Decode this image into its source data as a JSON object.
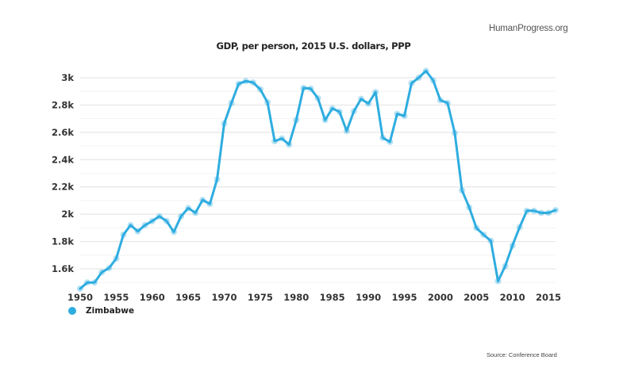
{
  "header": {
    "brand": "HumanProgress.org"
  },
  "footer": {
    "source": "Source: Conference Board"
  },
  "colors": {
    "series": "#2eade0",
    "grid_major": "#e6e6e6",
    "grid_minor": "#f3f3f3"
  },
  "chart_data": {
    "type": "line",
    "title": "GDP, per person, 2015 U.S. dollars, PPP",
    "xlabel": "",
    "ylabel": "",
    "xlim": [
      1950,
      2016
    ],
    "ylim": [
      1450,
      3050
    ],
    "grid": true,
    "legend_position": "bottom-left",
    "y_ticks": [
      {
        "value": 3000,
        "label": "3k"
      },
      {
        "value": 2800,
        "label": "2.8k"
      },
      {
        "value": 2600,
        "label": "2.6k"
      },
      {
        "value": 2400,
        "label": "2.4k"
      },
      {
        "value": 2200,
        "label": "2.2k"
      },
      {
        "value": 2000,
        "label": "2k"
      },
      {
        "value": 1800,
        "label": "1.8k"
      },
      {
        "value": 1600,
        "label": "1.6k"
      }
    ],
    "y_minor_ticks": [
      2900,
      2700,
      2500,
      2300,
      2100,
      1900,
      1700,
      1500
    ],
    "x_ticks": [
      1950,
      1955,
      1960,
      1965,
      1970,
      1975,
      1980,
      1985,
      1990,
      1995,
      2000,
      2005,
      2010,
      2015
    ],
    "series": [
      {
        "name": "Zimbabwe",
        "x": [
          1950,
          1951,
          1952,
          1953,
          1954,
          1955,
          1956,
          1957,
          1958,
          1959,
          1960,
          1961,
          1962,
          1963,
          1964,
          1965,
          1966,
          1967,
          1968,
          1969,
          1970,
          1971,
          1972,
          1973,
          1974,
          1975,
          1976,
          1977,
          1978,
          1979,
          1980,
          1981,
          1982,
          1983,
          1984,
          1985,
          1986,
          1987,
          1988,
          1989,
          1990,
          1991,
          1992,
          1993,
          1994,
          1995,
          1996,
          1997,
          1998,
          1999,
          2000,
          2001,
          2002,
          2003,
          2004,
          2005,
          2006,
          2007,
          2008,
          2009,
          2010,
          2011,
          2012,
          2013,
          2014,
          2015,
          2016
        ],
        "values": [
          1455,
          1500,
          1500,
          1575,
          1605,
          1675,
          1850,
          1920,
          1875,
          1920,
          1950,
          1985,
          1950,
          1870,
          1985,
          2045,
          2010,
          2105,
          2075,
          2255,
          2665,
          2815,
          2955,
          2975,
          2965,
          2915,
          2820,
          2535,
          2555,
          2510,
          2690,
          2925,
          2920,
          2850,
          2690,
          2775,
          2750,
          2610,
          2755,
          2845,
          2810,
          2895,
          2560,
          2530,
          2735,
          2720,
          2960,
          3000,
          3050,
          2980,
          2835,
          2815,
          2595,
          2175,
          2050,
          1900,
          1850,
          1805,
          1510,
          1620,
          1770,
          1905,
          2025,
          2025,
          2010,
          2010,
          2030
        ]
      }
    ]
  }
}
